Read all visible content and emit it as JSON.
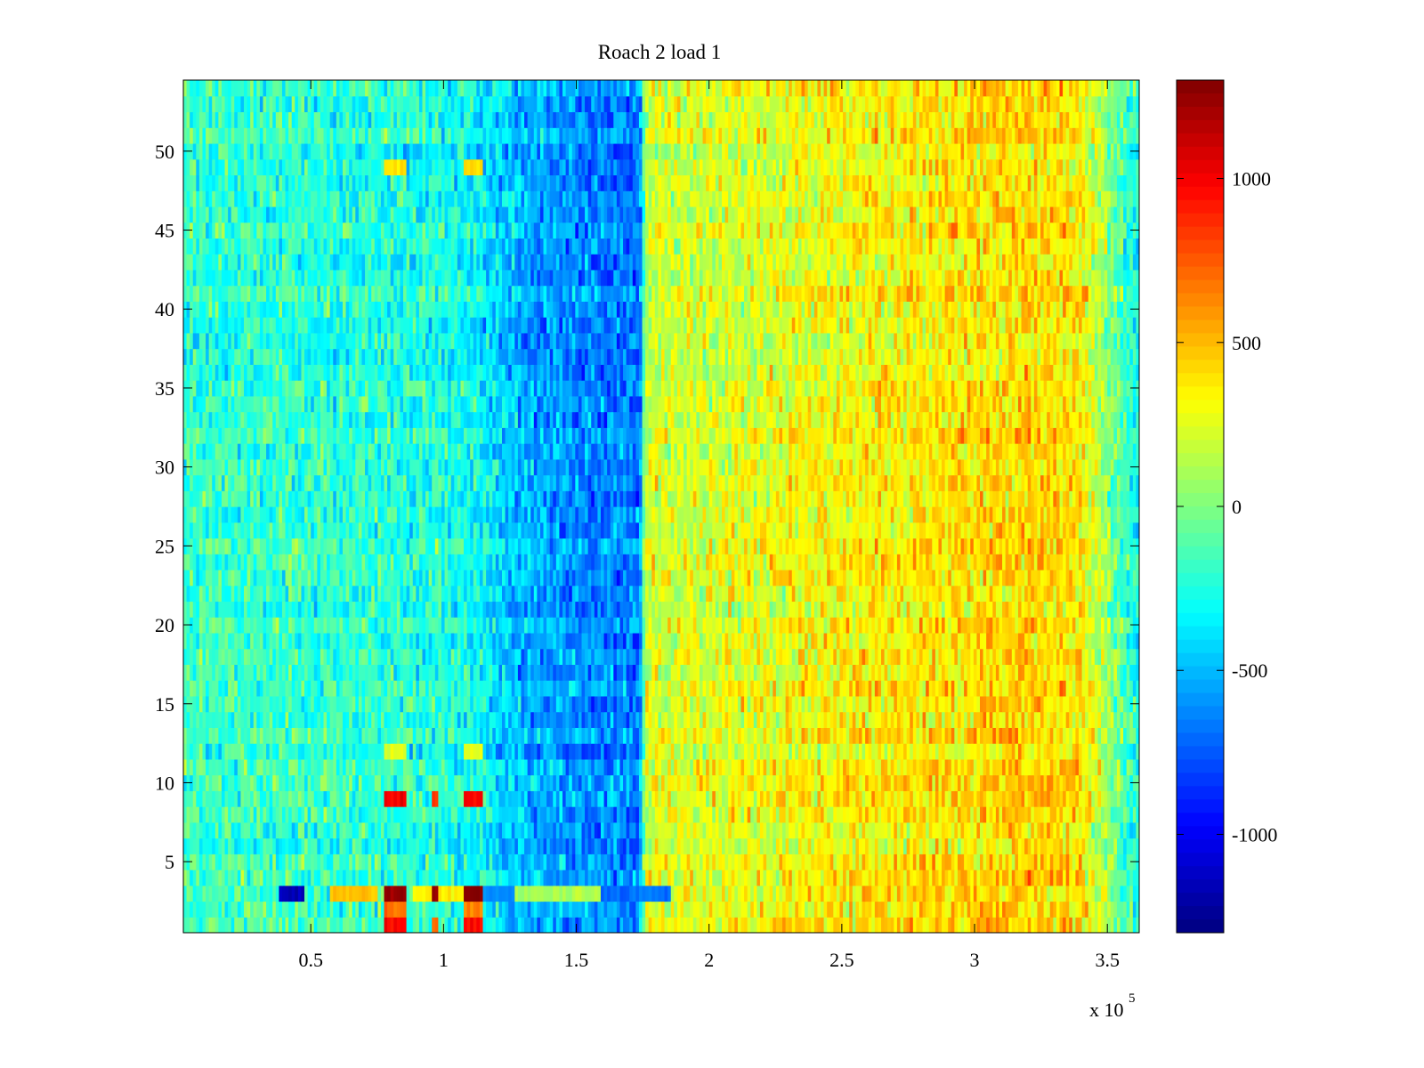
{
  "chart_data": {
    "type": "heatmap",
    "title": "Roach 2 load 1",
    "xlabel": "",
    "ylabel": "",
    "x_multiplier_label": "x 10",
    "x_multiplier_exponent": "5",
    "xlim": [
      0.02,
      3.62
    ],
    "ylim": [
      0.5,
      54.5
    ],
    "x_ticks": [
      0.5,
      1,
      1.5,
      2,
      2.5,
      3,
      3.5
    ],
    "x_tick_labels": [
      "0.5",
      "1",
      "1.5",
      "2",
      "2.5",
      "3",
      "3.5"
    ],
    "y_ticks": [
      5,
      10,
      15,
      20,
      25,
      30,
      35,
      40,
      45,
      50
    ],
    "y_tick_labels": [
      "5",
      "10",
      "15",
      "20",
      "25",
      "30",
      "35",
      "40",
      "45",
      "50"
    ],
    "rows": 54,
    "colorbar": {
      "colormap": "jet",
      "clim": [
        -1300,
        1300
      ],
      "ticks": [
        -1000,
        -500,
        0,
        500,
        1000
      ],
      "tick_labels": [
        "-1000",
        "-500",
        "0",
        "500",
        "1000"
      ]
    },
    "column_profile": [
      {
        "x": 0.02,
        "value": -180
      },
      {
        "x": 0.5,
        "value": -200
      },
      {
        "x": 1.0,
        "value": -250
      },
      {
        "x": 1.15,
        "value": -330
      },
      {
        "x": 1.25,
        "value": -480
      },
      {
        "x": 1.4,
        "value": -560
      },
      {
        "x": 1.55,
        "value": -620
      },
      {
        "x": 1.74,
        "value": -660
      },
      {
        "x": 1.76,
        "value": 200
      },
      {
        "x": 2.0,
        "value": 230
      },
      {
        "x": 2.5,
        "value": 320
      },
      {
        "x": 3.0,
        "value": 400
      },
      {
        "x": 3.2,
        "value": 430
      },
      {
        "x": 3.4,
        "value": 380
      },
      {
        "x": 3.5,
        "value": 50
      },
      {
        "x": 3.62,
        "value": -300
      }
    ],
    "noise_amplitude": 230,
    "anomalies": [
      {
        "row": 3,
        "x_from": 0.38,
        "x_to": 0.48,
        "value": -1150
      },
      {
        "row": 3,
        "x_from": 0.57,
        "x_to": 0.75,
        "value": 480
      },
      {
        "row": 3,
        "x_from": 0.78,
        "x_to": 0.86,
        "value": 1250
      },
      {
        "row": 3,
        "x_from": 0.89,
        "x_to": 1.07,
        "value": 350
      },
      {
        "row": 3,
        "x_from": 0.96,
        "x_to": 0.98,
        "value": 1250
      },
      {
        "row": 3,
        "x_from": 1.08,
        "x_to": 1.15,
        "value": 1250
      },
      {
        "row": 3,
        "x_from": 1.15,
        "x_to": 1.27,
        "value": -620
      },
      {
        "row": 3,
        "x_from": 1.27,
        "x_to": 1.59,
        "value": 120
      },
      {
        "row": 3,
        "x_from": 1.59,
        "x_to": 1.86,
        "value": -700
      },
      {
        "row": 2,
        "x_from": 0.78,
        "x_to": 0.86,
        "value": 700
      },
      {
        "row": 2,
        "x_from": 1.08,
        "x_to": 1.15,
        "value": 650
      },
      {
        "row": 1,
        "x_from": 0.78,
        "x_to": 0.86,
        "value": 1000
      },
      {
        "row": 1,
        "x_from": 0.96,
        "x_to": 0.98,
        "value": 700
      },
      {
        "row": 1,
        "x_from": 1.08,
        "x_to": 1.15,
        "value": 950
      },
      {
        "row": 9,
        "x_from": 0.78,
        "x_to": 0.86,
        "value": 1000
      },
      {
        "row": 9,
        "x_from": 0.96,
        "x_to": 0.98,
        "value": 800
      },
      {
        "row": 9,
        "x_from": 1.08,
        "x_to": 1.15,
        "value": 1000
      },
      {
        "row": 49,
        "x_from": 0.78,
        "x_to": 0.86,
        "value": 420
      },
      {
        "row": 49,
        "x_from": 1.08,
        "x_to": 1.15,
        "value": 420
      },
      {
        "row": 12,
        "x_from": 0.78,
        "x_to": 0.86,
        "value": 250
      },
      {
        "row": 12,
        "x_from": 1.08,
        "x_to": 1.15,
        "value": 250
      }
    ]
  }
}
